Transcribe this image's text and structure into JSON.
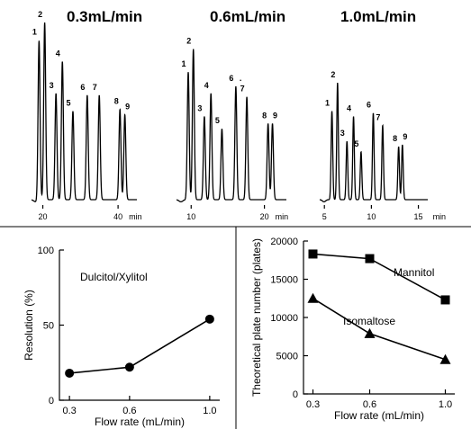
{
  "chart_data": [
    {
      "type": "line",
      "subtype": "chromatogram",
      "title": "0.3mL/min",
      "xlabel": "",
      "x_unit_label": "min",
      "xticks": [
        20,
        40
      ],
      "xlim": [
        17,
        45
      ],
      "peaks": [
        {
          "label": "1",
          "time": 19.0,
          "height": 0.9
        },
        {
          "label": "2",
          "time": 20.5,
          "height": 1.0
        },
        {
          "label": "3",
          "time": 23.5,
          "height": 0.6
        },
        {
          "label": "4",
          "time": 25.2,
          "height": 0.78
        },
        {
          "label": "5",
          "time": 28.0,
          "height": 0.5
        },
        {
          "label": "6",
          "time": 31.8,
          "height": 0.59
        },
        {
          "label": "7",
          "time": 35.0,
          "height": 0.59
        },
        {
          "label": "8",
          "time": 40.5,
          "height": 0.51
        },
        {
          "label": "9",
          "time": 41.8,
          "height": 0.48
        }
      ]
    },
    {
      "type": "line",
      "subtype": "chromatogram",
      "title": "0.6mL/min",
      "xlabel": "",
      "x_unit_label": "min",
      "xticks": [
        10,
        20
      ],
      "xlim": [
        8,
        23
      ],
      "peaks": [
        {
          "label": "1",
          "time": 9.6,
          "height": 0.72
        },
        {
          "label": "2",
          "time": 10.3,
          "height": 0.85
        },
        {
          "label": "3",
          "time": 11.8,
          "height": 0.47
        },
        {
          "label": "4",
          "time": 12.7,
          "height": 0.6
        },
        {
          "label": "5",
          "time": 14.2,
          "height": 0.4
        },
        {
          "label": "6",
          "time": 16.1,
          "height": 0.64
        },
        {
          "label": "7",
          "time": 17.6,
          "height": 0.58
        },
        {
          "label": "8",
          "time": 20.5,
          "height": 0.43
        },
        {
          "label": "9",
          "time": 21.1,
          "height": 0.43
        }
      ],
      "stray_mark": "."
    },
    {
      "type": "line",
      "subtype": "chromatogram",
      "title": "1.0mL/min",
      "xlabel": "",
      "x_unit_label": "min",
      "xticks": [
        5,
        10,
        15
      ],
      "xlim": [
        4.5,
        16
      ],
      "peaks": [
        {
          "label": "1",
          "time": 5.8,
          "height": 0.5
        },
        {
          "label": "2",
          "time": 6.4,
          "height": 0.66
        },
        {
          "label": "3",
          "time": 7.4,
          "height": 0.33
        },
        {
          "label": "4",
          "time": 8.1,
          "height": 0.47
        },
        {
          "label": "5",
          "time": 8.9,
          "height": 0.27
        },
        {
          "label": "6",
          "time": 10.2,
          "height": 0.49
        },
        {
          "label": "7",
          "time": 11.2,
          "height": 0.42
        },
        {
          "label": "8",
          "time": 12.9,
          "height": 0.3
        },
        {
          "label": "9",
          "time": 13.3,
          "height": 0.31
        }
      ]
    },
    {
      "type": "line",
      "title": "",
      "xlabel": "Flow rate (mL/min)",
      "ylabel": "Resolution (%)",
      "x": [
        0.3,
        0.6,
        1.0
      ],
      "xticks": [
        "0.3",
        "0.6",
        "1.0"
      ],
      "xlim": [
        0.25,
        1.05
      ],
      "ylim": [
        0,
        100
      ],
      "yticks": [
        0,
        50,
        100
      ],
      "series": [
        {
          "name": "Dulcitol/Xylitol",
          "marker": "circle",
          "values": [
            18,
            22,
            54
          ]
        }
      ]
    },
    {
      "type": "line",
      "title": "",
      "xlabel": "Flow rate (mL/min)",
      "ylabel": "Theoretical plate number (plates)",
      "x": [
        0.3,
        0.6,
        1.0
      ],
      "xticks": [
        "0.3",
        "0.6",
        "1.0"
      ],
      "xlim": [
        0.25,
        1.05
      ],
      "ylim": [
        0,
        20000
      ],
      "yticks": [
        0,
        5000,
        10000,
        15000,
        20000
      ],
      "series": [
        {
          "name": "Mannitol",
          "marker": "square",
          "values": [
            18300,
            17700,
            12300
          ]
        },
        {
          "name": "Isomaltose",
          "marker": "triangle",
          "values": [
            12500,
            7900,
            4500
          ]
        }
      ]
    }
  ]
}
